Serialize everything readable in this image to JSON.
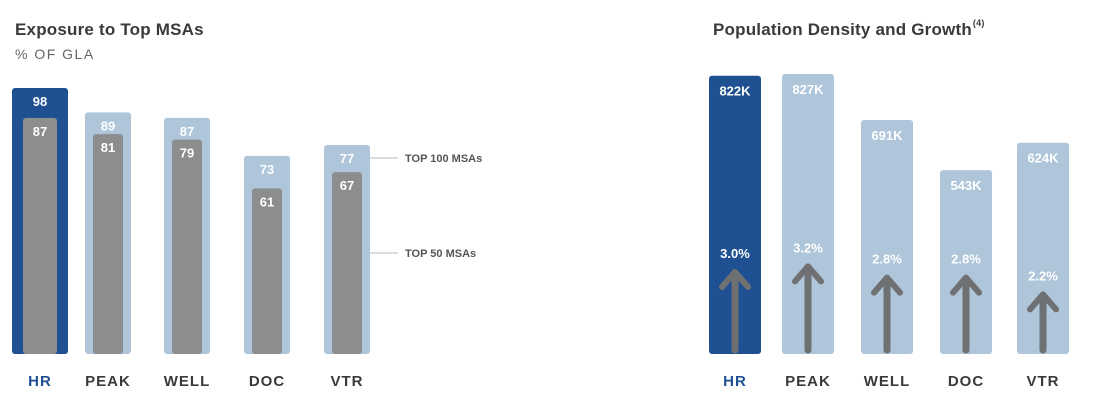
{
  "colors": {
    "highlight": "#1f5192",
    "light": "#aec5da",
    "gray": "#8c8d8f",
    "arrow": "#6f7071",
    "hr_label": "#1f5192",
    "label": "#3a3a3a"
  },
  "left_panel": {
    "title": "Exposure to Top MSAs",
    "subtitle": "% OF GLA"
  },
  "right_panel": {
    "title": "Population Density and Growth",
    "title_note": "(4)"
  },
  "chart_data": [
    {
      "type": "bar",
      "title": "Exposure to Top MSAs",
      "subtitle": "% OF GLA",
      "categories": [
        "HR",
        "PEAK",
        "WELL",
        "DOC",
        "VTR"
      ],
      "series": [
        {
          "name": "TOP 100 MSAs",
          "values": [
            98,
            89,
            87,
            73,
            77
          ]
        },
        {
          "name": "TOP 50 MSAs",
          "values": [
            87,
            81,
            79,
            61,
            67
          ]
        }
      ],
      "highlight_category": "HR",
      "ylim": [
        0,
        100
      ],
      "legend_placement": "right"
    },
    {
      "type": "bar",
      "title": "Population Density and Growth",
      "categories": [
        "HR",
        "PEAK",
        "WELL",
        "DOC",
        "VTR"
      ],
      "series": [
        {
          "values": [
            822,
            827,
            691,
            543,
            624
          ],
          "labels": [
            "822K",
            "827K",
            "691K",
            "543K",
            "624K"
          ]
        },
        {
          "values": [
            3.0,
            3.2,
            2.8,
            2.8,
            2.2
          ],
          "labels": [
            "3.0%",
            "3.2%",
            "2.8%",
            "2.8%",
            "2.2%"
          ]
        }
      ],
      "highlight_category": "HR",
      "ylim": [
        0,
        850
      ]
    }
  ]
}
